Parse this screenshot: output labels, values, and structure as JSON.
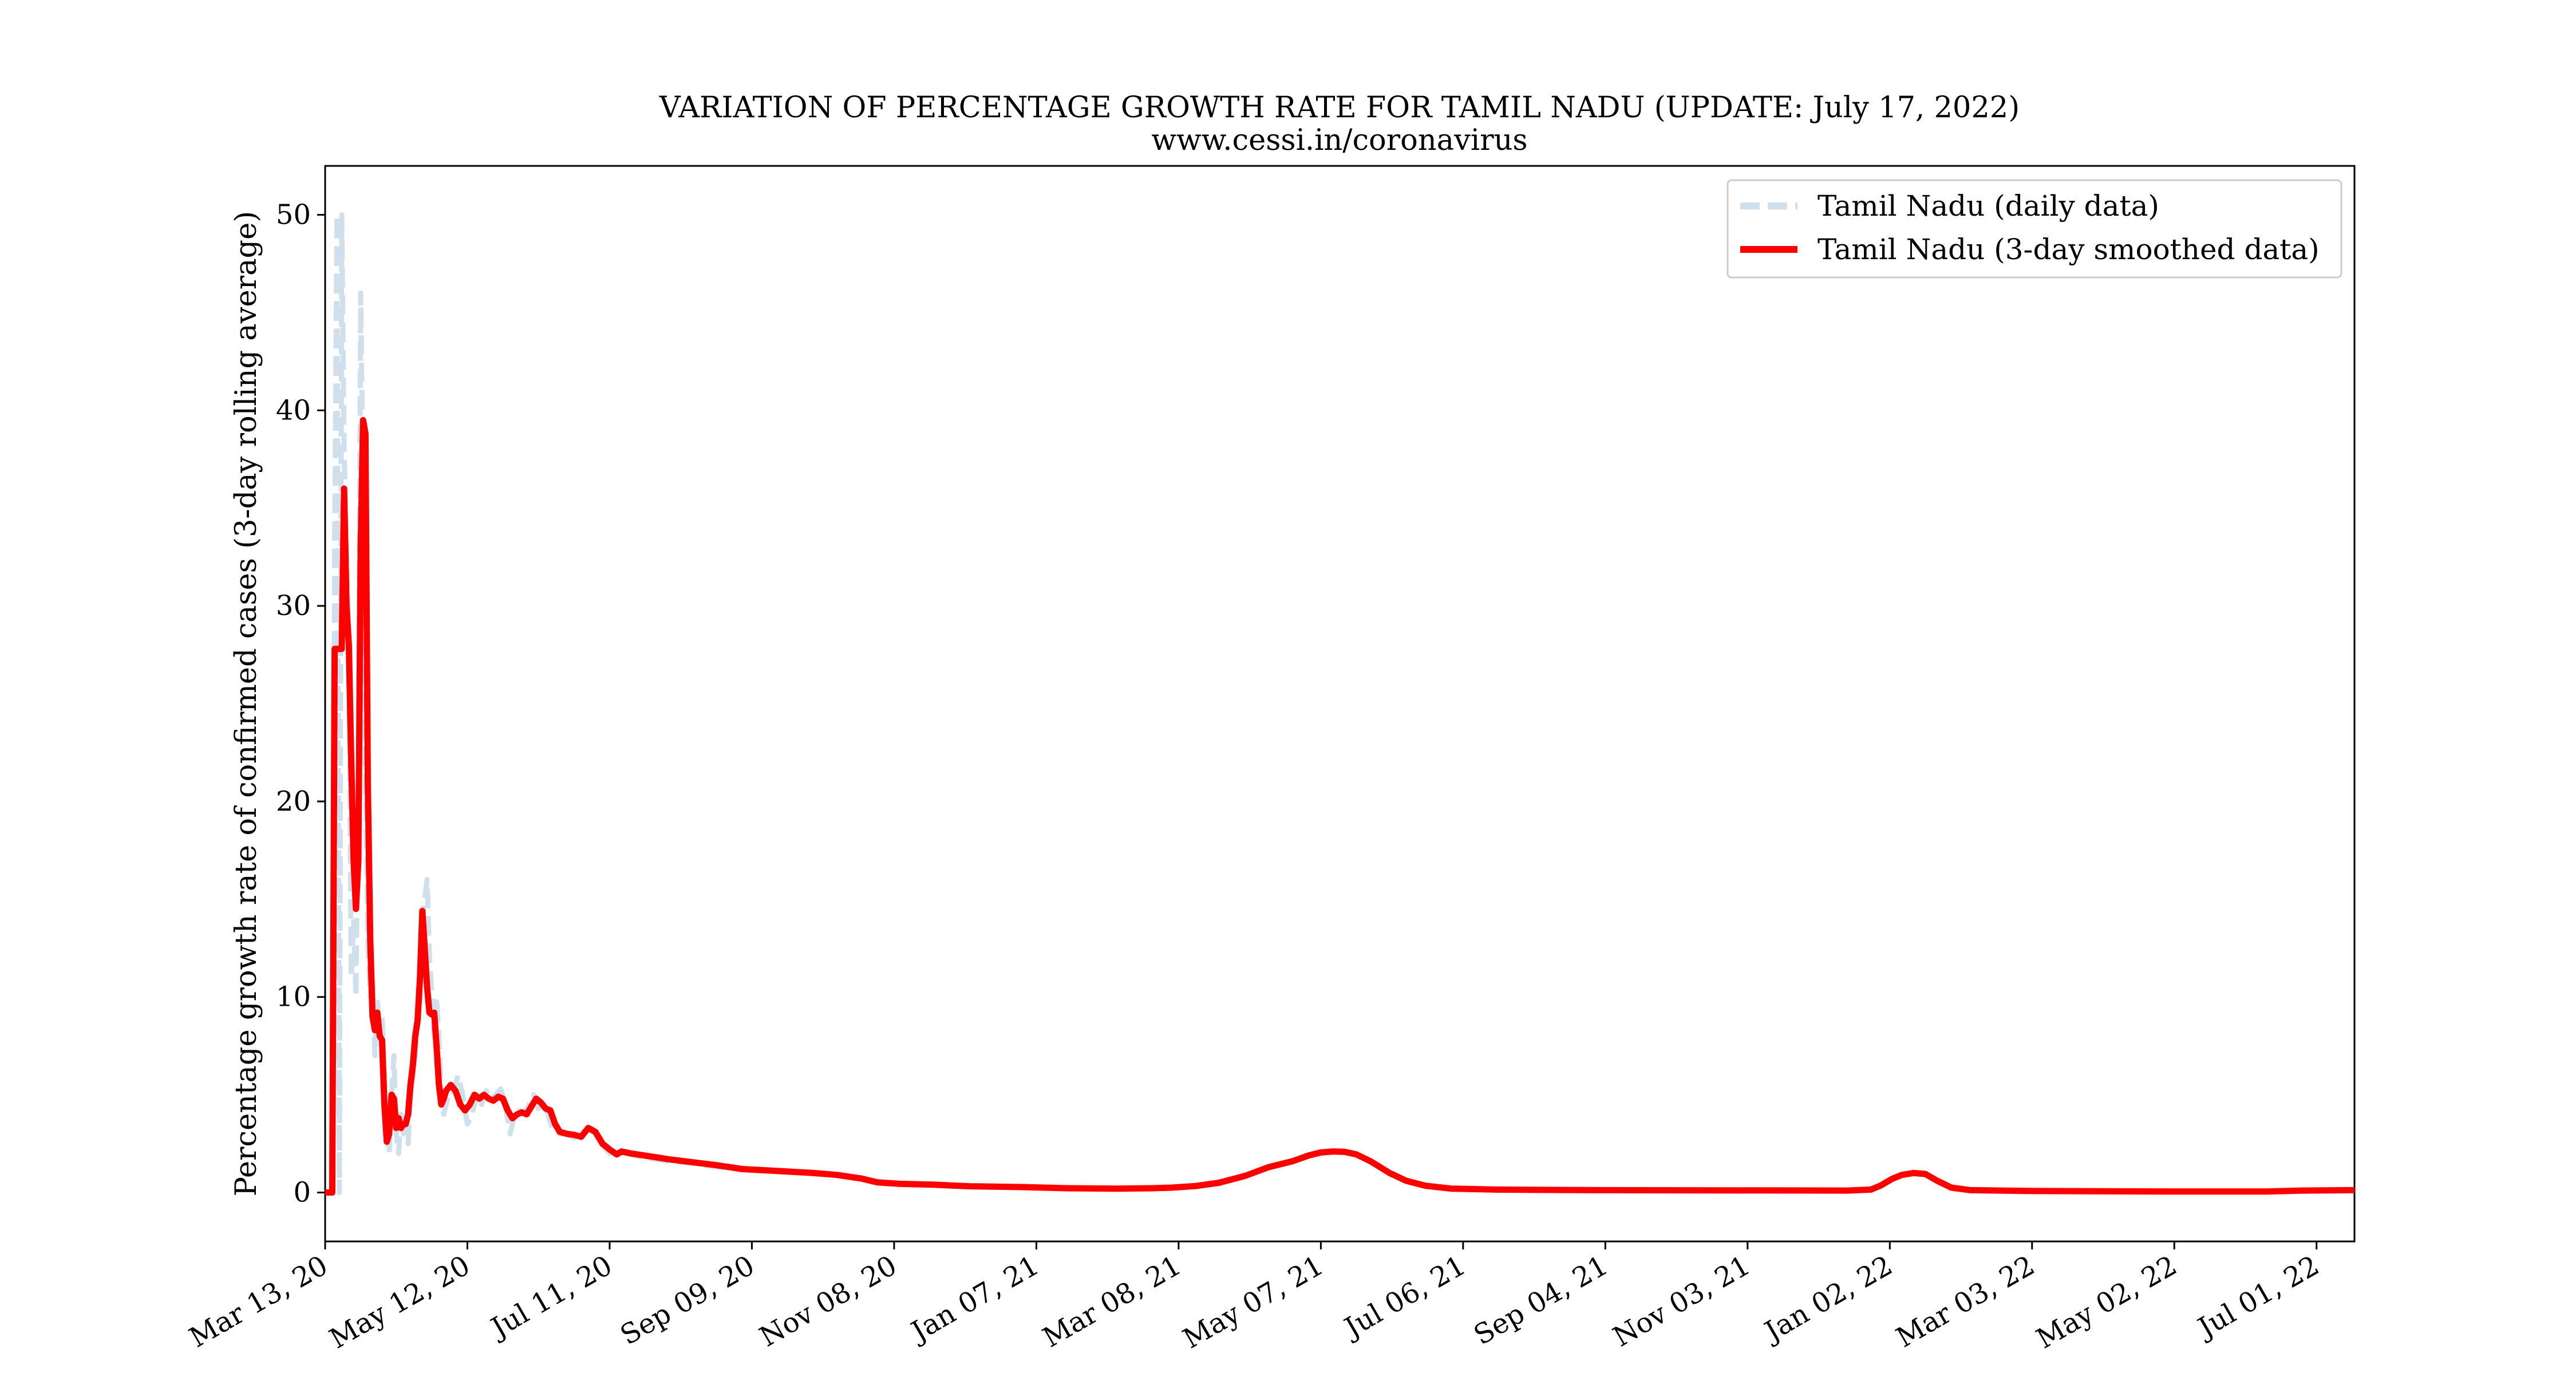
{
  "chart_data": {
    "type": "line",
    "title": "VARIATION OF PERCENTAGE GROWTH RATE FOR TAMIL NADU (UPDATE: July 17, 2022)",
    "subtitle": "www.cessi.in/coronavirus",
    "xlabel": "",
    "ylabel": "Percentage growth rate of confirmed cases (3-day rolling average)",
    "x_start_date": "2020-03-13",
    "xlim": [
      "2020-03-13",
      "2022-07-17"
    ],
    "ylim": [
      -2.5,
      52.5
    ],
    "x_ticks": [
      "Mar 13, 20",
      "May 12, 20",
      "Jul 11, 20",
      "Sep 09, 20",
      "Nov 08, 20",
      "Jan 07, 21",
      "Mar 08, 21",
      "May 07, 21",
      "Jul 06, 21",
      "Sep 04, 21",
      "Nov 03, 21",
      "Jan 02, 22",
      "Mar 03, 22",
      "May 02, 22",
      "Jul 01, 22"
    ],
    "y_ticks": [
      0,
      10,
      20,
      30,
      40,
      50
    ],
    "grid": false,
    "legend_position": "top-right",
    "series": [
      {
        "name": "Tamil Nadu (daily data)",
        "color": "#cfe0ec",
        "style": "dashed",
        "points": [
          [
            "2020-03-13",
            0
          ],
          [
            "2020-03-16",
            0
          ],
          [
            "2020-03-17",
            33
          ],
          [
            "2020-03-18",
            50
          ],
          [
            "2020-03-19",
            0
          ],
          [
            "2020-03-20",
            50
          ],
          [
            "2020-03-21",
            38
          ],
          [
            "2020-03-23",
            28
          ],
          [
            "2020-03-24",
            11
          ],
          [
            "2020-03-25",
            14
          ],
          [
            "2020-03-26",
            10
          ],
          [
            "2020-03-27",
            22
          ],
          [
            "2020-03-28",
            46
          ],
          [
            "2020-03-29",
            36
          ],
          [
            "2020-03-30",
            22
          ],
          [
            "2020-03-31",
            13
          ],
          [
            "2020-04-01",
            10
          ],
          [
            "2020-04-02",
            11
          ],
          [
            "2020-04-03",
            7
          ],
          [
            "2020-04-04",
            10
          ],
          [
            "2020-04-05",
            8
          ],
          [
            "2020-04-06",
            9
          ],
          [
            "2020-04-07",
            6
          ],
          [
            "2020-04-08",
            3
          ],
          [
            "2020-04-09",
            2
          ],
          [
            "2020-04-10",
            5
          ],
          [
            "2020-04-11",
            7
          ],
          [
            "2020-04-12",
            3
          ],
          [
            "2020-04-13",
            2
          ],
          [
            "2020-04-14",
            4
          ],
          [
            "2020-04-15",
            3
          ],
          [
            "2020-04-16",
            4
          ],
          [
            "2020-04-17",
            2.5
          ],
          [
            "2020-04-18",
            5
          ],
          [
            "2020-04-20",
            7
          ],
          [
            "2020-04-21",
            9
          ],
          [
            "2020-04-22",
            10
          ],
          [
            "2020-04-23",
            14
          ],
          [
            "2020-04-24",
            15
          ],
          [
            "2020-04-25",
            16
          ],
          [
            "2020-04-26",
            12
          ],
          [
            "2020-04-27",
            10
          ],
          [
            "2020-04-28",
            8
          ],
          [
            "2020-04-29",
            10
          ],
          [
            "2020-04-30",
            8
          ],
          [
            "2020-05-01",
            5
          ],
          [
            "2020-05-02",
            4
          ],
          [
            "2020-05-04",
            5
          ],
          [
            "2020-05-06",
            5
          ],
          [
            "2020-05-08",
            6
          ],
          [
            "2020-05-10",
            5
          ],
          [
            "2020-05-12",
            3.5
          ],
          [
            "2020-05-14",
            4
          ],
          [
            "2020-05-16",
            5
          ],
          [
            "2020-05-18",
            4.5
          ],
          [
            "2020-05-20",
            5.2
          ],
          [
            "2020-05-22",
            4.8
          ],
          [
            "2020-05-24",
            5
          ],
          [
            "2020-05-26",
            5.3
          ],
          [
            "2020-05-28",
            4.5
          ],
          [
            "2020-05-30",
            3
          ],
          [
            "2020-06-01",
            4
          ],
          [
            "2020-06-03",
            4.2
          ],
          [
            "2020-06-05",
            4
          ],
          [
            "2020-06-07",
            4.5
          ],
          [
            "2020-06-09",
            5
          ],
          [
            "2020-06-11",
            4.3
          ],
          [
            "2020-06-13",
            4.5
          ],
          [
            "2020-06-15",
            4
          ],
          [
            "2020-06-17",
            3.2
          ],
          [
            "2020-06-20",
            3
          ],
          [
            "2020-06-23",
            3
          ],
          [
            "2020-06-26",
            2.8
          ],
          [
            "2020-06-29",
            3
          ],
          [
            "2020-07-02",
            3.3
          ],
          [
            "2020-07-05",
            3
          ],
          [
            "2020-07-08",
            2.4
          ],
          [
            "2020-07-11",
            2
          ],
          [
            "2020-07-14",
            2.1
          ],
          [
            "2020-07-18",
            2
          ],
          [
            "2020-07-25",
            1.8
          ],
          [
            "2020-08-05",
            1.6
          ],
          [
            "2020-08-15",
            1.5
          ],
          [
            "2020-08-25",
            1.3
          ],
          [
            "2020-09-05",
            1.2
          ],
          [
            "2020-09-20",
            1.1
          ],
          [
            "2020-10-05",
            1.0
          ],
          [
            "2020-10-15",
            0.9
          ],
          [
            "2020-10-25",
            0.7
          ],
          [
            "2020-11-01",
            0.5
          ],
          [
            "2020-11-10",
            0.45
          ],
          [
            "2020-11-25",
            0.4
          ],
          [
            "2020-12-10",
            0.33
          ],
          [
            "2021-01-01",
            0.28
          ],
          [
            "2021-01-20",
            0.22
          ],
          [
            "2021-02-10",
            0.2
          ],
          [
            "2021-02-25",
            0.22
          ],
          [
            "2021-03-05",
            0.25
          ],
          [
            "2021-03-15",
            0.32
          ],
          [
            "2021-03-25",
            0.5
          ],
          [
            "2021-04-05",
            0.85
          ],
          [
            "2021-04-15",
            1.3
          ],
          [
            "2021-04-25",
            1.6
          ],
          [
            "2021-05-02",
            1.9
          ],
          [
            "2021-05-07",
            2.05
          ],
          [
            "2021-05-12",
            2.1
          ],
          [
            "2021-05-17",
            2.08
          ],
          [
            "2021-05-22",
            1.95
          ],
          [
            "2021-05-28",
            1.6
          ],
          [
            "2021-06-05",
            1.0
          ],
          [
            "2021-06-12",
            0.6
          ],
          [
            "2021-06-20",
            0.35
          ],
          [
            "2021-07-01",
            0.2
          ],
          [
            "2021-07-20",
            0.15
          ],
          [
            "2021-09-01",
            0.12
          ],
          [
            "2021-12-15",
            0.1
          ],
          [
            "2021-12-25",
            0.15
          ],
          [
            "2021-12-29",
            0.35
          ],
          [
            "2022-01-03",
            0.7
          ],
          [
            "2022-01-07",
            0.9
          ],
          [
            "2022-01-12",
            1.0
          ],
          [
            "2022-01-17",
            0.95
          ],
          [
            "2022-01-22",
            0.6
          ],
          [
            "2022-01-28",
            0.25
          ],
          [
            "2022-02-05",
            0.12
          ],
          [
            "2022-03-01",
            0.08
          ],
          [
            "2022-05-01",
            0.05
          ],
          [
            "2022-06-10",
            0.05
          ],
          [
            "2022-06-25",
            0.1
          ],
          [
            "2022-07-17",
            0.12
          ]
        ]
      },
      {
        "name": "Tamil Nadu (3-day smoothed data)",
        "color": "#ff0000",
        "style": "solid",
        "points": [
          [
            "2020-03-13",
            0
          ],
          [
            "2020-03-16",
            0
          ],
          [
            "2020-03-17",
            27.8
          ],
          [
            "2020-03-20",
            27.8
          ],
          [
            "2020-03-21",
            36
          ],
          [
            "2020-03-22",
            30
          ],
          [
            "2020-03-23",
            28
          ],
          [
            "2020-03-24",
            22
          ],
          [
            "2020-03-25",
            17
          ],
          [
            "2020-03-26",
            14.5
          ],
          [
            "2020-03-27",
            17
          ],
          [
            "2020-03-28",
            33
          ],
          [
            "2020-03-29",
            39.5
          ],
          [
            "2020-03-30",
            38.8
          ],
          [
            "2020-03-31",
            21
          ],
          [
            "2020-04-01",
            13
          ],
          [
            "2020-04-02",
            9
          ],
          [
            "2020-04-03",
            8.3
          ],
          [
            "2020-04-04",
            9.2
          ],
          [
            "2020-04-05",
            8
          ],
          [
            "2020-04-06",
            7.8
          ],
          [
            "2020-04-07",
            4.5
          ],
          [
            "2020-04-08",
            2.6
          ],
          [
            "2020-04-09",
            3
          ],
          [
            "2020-04-10",
            5
          ],
          [
            "2020-04-11",
            4.8
          ],
          [
            "2020-04-12",
            3.3
          ],
          [
            "2020-04-13",
            3.8
          ],
          [
            "2020-04-14",
            3.3
          ],
          [
            "2020-04-15",
            3.5
          ],
          [
            "2020-04-16",
            3.5
          ],
          [
            "2020-04-17",
            4
          ],
          [
            "2020-04-18",
            5.5
          ],
          [
            "2020-04-19",
            6.5
          ],
          [
            "2020-04-20",
            8
          ],
          [
            "2020-04-21",
            8.8
          ],
          [
            "2020-04-22",
            11
          ],
          [
            "2020-04-23",
            14.4
          ],
          [
            "2020-04-24",
            12.5
          ],
          [
            "2020-04-25",
            10.5
          ],
          [
            "2020-04-26",
            9.2
          ],
          [
            "2020-04-27",
            9.1
          ],
          [
            "2020-04-28",
            9.2
          ],
          [
            "2020-04-29",
            7.5
          ],
          [
            "2020-04-30",
            5.5
          ],
          [
            "2020-05-01",
            4.5
          ],
          [
            "2020-05-02",
            4.8
          ],
          [
            "2020-05-03",
            5.2
          ],
          [
            "2020-05-05",
            5.5
          ],
          [
            "2020-05-07",
            5.2
          ],
          [
            "2020-05-09",
            4.5
          ],
          [
            "2020-05-11",
            4.2
          ],
          [
            "2020-05-13",
            4.5
          ],
          [
            "2020-05-15",
            5
          ],
          [
            "2020-05-17",
            4.8
          ],
          [
            "2020-05-19",
            5
          ],
          [
            "2020-05-21",
            4.8
          ],
          [
            "2020-05-23",
            4.7
          ],
          [
            "2020-05-25",
            4.9
          ],
          [
            "2020-05-27",
            4.8
          ],
          [
            "2020-05-29",
            4.2
          ],
          [
            "2020-05-31",
            3.8
          ],
          [
            "2020-06-02",
            4
          ],
          [
            "2020-06-04",
            4.1
          ],
          [
            "2020-06-06",
            4
          ],
          [
            "2020-06-08",
            4.4
          ],
          [
            "2020-06-10",
            4.8
          ],
          [
            "2020-06-12",
            4.6
          ],
          [
            "2020-06-14",
            4.3
          ],
          [
            "2020-06-16",
            4.2
          ],
          [
            "2020-06-18",
            3.5
          ],
          [
            "2020-06-20",
            3.1
          ],
          [
            "2020-06-23",
            3.0
          ],
          [
            "2020-06-26",
            2.95
          ],
          [
            "2020-06-29",
            2.85
          ],
          [
            "2020-07-02",
            3.3
          ],
          [
            "2020-07-05",
            3.1
          ],
          [
            "2020-07-08",
            2.5
          ],
          [
            "2020-07-11",
            2.2
          ],
          [
            "2020-07-14",
            1.95
          ],
          [
            "2020-07-16",
            2.1
          ],
          [
            "2020-07-20",
            2
          ],
          [
            "2020-07-28",
            1.85
          ],
          [
            "2020-08-05",
            1.7
          ],
          [
            "2020-08-15",
            1.55
          ],
          [
            "2020-08-25",
            1.4
          ],
          [
            "2020-09-05",
            1.2
          ],
          [
            "2020-09-20",
            1.1
          ],
          [
            "2020-10-05",
            1.0
          ],
          [
            "2020-10-15",
            0.9
          ],
          [
            "2020-10-25",
            0.72
          ],
          [
            "2020-11-01",
            0.52
          ],
          [
            "2020-11-10",
            0.45
          ],
          [
            "2020-11-25",
            0.4
          ],
          [
            "2020-12-10",
            0.32
          ],
          [
            "2021-01-01",
            0.28
          ],
          [
            "2021-01-20",
            0.22
          ],
          [
            "2021-02-10",
            0.2
          ],
          [
            "2021-02-25",
            0.22
          ],
          [
            "2021-03-05",
            0.25
          ],
          [
            "2021-03-15",
            0.33
          ],
          [
            "2021-03-25",
            0.5
          ],
          [
            "2021-04-05",
            0.85
          ],
          [
            "2021-04-15",
            1.3
          ],
          [
            "2021-04-25",
            1.6
          ],
          [
            "2021-05-02",
            1.9
          ],
          [
            "2021-05-07",
            2.05
          ],
          [
            "2021-05-12",
            2.1
          ],
          [
            "2021-05-17",
            2.08
          ],
          [
            "2021-05-22",
            1.95
          ],
          [
            "2021-05-28",
            1.6
          ],
          [
            "2021-06-05",
            1.0
          ],
          [
            "2021-06-12",
            0.6
          ],
          [
            "2021-06-20",
            0.35
          ],
          [
            "2021-07-01",
            0.2
          ],
          [
            "2021-07-20",
            0.15
          ],
          [
            "2021-09-01",
            0.12
          ],
          [
            "2021-12-15",
            0.1
          ],
          [
            "2021-12-25",
            0.15
          ],
          [
            "2021-12-29",
            0.35
          ],
          [
            "2022-01-03",
            0.7
          ],
          [
            "2022-01-07",
            0.9
          ],
          [
            "2022-01-12",
            1.0
          ],
          [
            "2022-01-17",
            0.95
          ],
          [
            "2022-01-22",
            0.6
          ],
          [
            "2022-01-28",
            0.25
          ],
          [
            "2022-02-05",
            0.12
          ],
          [
            "2022-03-01",
            0.08
          ],
          [
            "2022-05-01",
            0.05
          ],
          [
            "2022-06-10",
            0.05
          ],
          [
            "2022-06-25",
            0.1
          ],
          [
            "2022-07-17",
            0.12
          ]
        ]
      }
    ]
  }
}
